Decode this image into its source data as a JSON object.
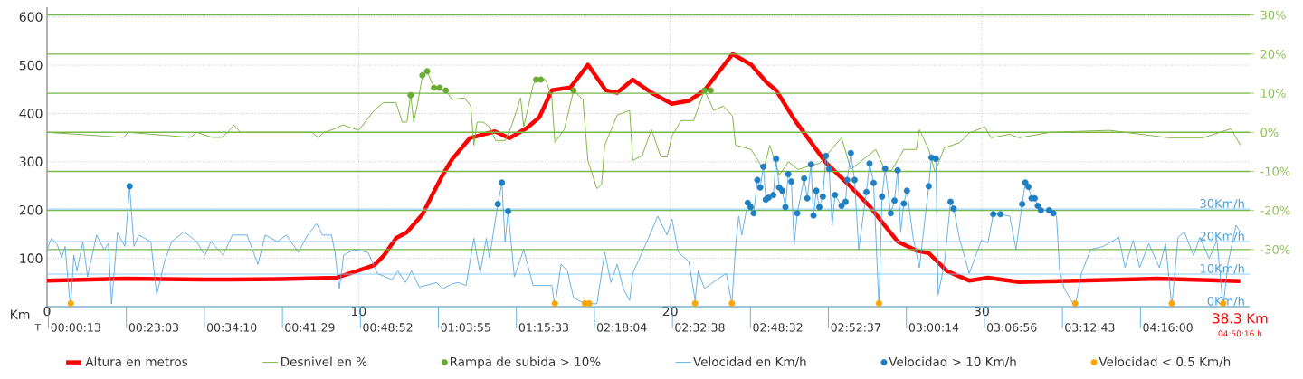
{
  "chart_data": {
    "type": "line",
    "xlabel": "Km",
    "xlim": [
      0,
      38.6
    ],
    "xticks": [
      0,
      10,
      20,
      30
    ],
    "ylim": [
      0,
      620
    ],
    "yticks": [
      100,
      200,
      300,
      400,
      500,
      600
    ],
    "y2lim": [
      -44.6,
      32
    ],
    "y2ticks": [
      {
        "value": 30,
        "label": "30%"
      },
      {
        "value": 20,
        "label": "20%"
      },
      {
        "value": 10,
        "label": "10%"
      },
      {
        "value": 0,
        "label": "0%"
      },
      {
        "value": -10,
        "label": "-10%"
      },
      {
        "value": -20,
        "label": "-20%"
      },
      {
        "value": -30,
        "label": "-30%"
      }
    ],
    "y3lim": [
      0,
      92
    ],
    "y3ticks": [
      {
        "value": 0,
        "label": "0Km/h"
      },
      {
        "value": 10,
        "label": "10Km/h"
      },
      {
        "value": 20,
        "label": "20Km/h"
      },
      {
        "value": 30,
        "label": "30Km/h"
      }
    ],
    "grid": true,
    "legend": "bottom",
    "annotations": [
      "T",
      "38.3 Km",
      "04:50:16 h",
      "00:00:13",
      "00:23:03",
      "00:34:10",
      "00:41:29",
      "00:48:52",
      "01:03:55",
      "01:15:33",
      "02:18:04",
      "02:32:38",
      "02:48:32",
      "02:52:37",
      "03:00:14",
      "03:06:56",
      "03:12:43",
      "04:16:00"
    ],
    "series": [
      {
        "name": "Altura en metros",
        "color": "#ff0000",
        "x": [
          0,
          2.5,
          5,
          7.5,
          9.3,
          9.9,
          10.5,
          10.8,
          11.2,
          11.55,
          12.05,
          12.4,
          12.7,
          13.0,
          13.57,
          14.37,
          14.84,
          15.4,
          15.8,
          16.2,
          16.8,
          17.36,
          17.93,
          18.3,
          18.8,
          19.4,
          20.05,
          20.6,
          21.1,
          22.0,
          22.6,
          23.1,
          23.4,
          24.0,
          25.0,
          25.8,
          26.4,
          26.9,
          27.3,
          27.9,
          28.3,
          28.9,
          29.6,
          30.2,
          31.2,
          33.1,
          35.6,
          38.3
        ],
        "values": [
          54,
          58,
          56,
          57,
          60,
          73,
          86,
          105,
          142,
          154,
          191,
          236,
          273,
          305,
          349,
          363,
          349,
          370,
          392,
          448,
          454,
          501,
          448,
          443,
          470,
          443,
          420,
          426,
          448,
          523,
          501,
          464,
          448,
          386,
          298,
          248,
          208,
          167,
          135,
          116,
          111,
          73,
          54,
          60,
          51,
          54,
          58,
          53
        ]
      },
      {
        "name": "Desnivel en %",
        "axis": "y2",
        "color": "#80b844",
        "x": [
          0,
          2.46,
          2.6,
          4.6,
          4.8,
          5.3,
          5.6,
          5.8,
          6.0,
          6.2,
          8.5,
          8.7,
          8.9,
          9.2,
          9.5,
          10.0,
          10.5,
          10.8,
          11.2,
          11.4,
          11.55,
          11.67,
          11.77,
          11.9,
          12.05,
          12.2,
          12.42,
          12.8,
          13.0,
          13.4,
          13.6,
          13.7,
          13.8,
          14.0,
          14.2,
          14.4,
          14.7,
          14.9,
          15.2,
          15.3,
          15.6,
          15.7,
          16.0,
          16.2,
          16.3,
          16.6,
          16.9,
          17.2,
          17.36,
          17.65,
          17.8,
          17.9,
          18.3,
          18.7,
          18.8,
          19.1,
          19.4,
          19.7,
          19.9,
          20.06,
          20.35,
          20.75,
          21.1,
          21.4,
          21.7,
          22.0,
          22.1,
          22.6,
          23.0,
          23.2,
          23.5,
          23.8,
          24.1,
          24.8,
          25.5,
          25.8,
          26.6,
          26.9,
          27.1,
          27.5,
          27.9,
          28.0,
          28.3,
          28.5,
          28.8,
          29.3,
          29.6,
          30.1,
          30.3,
          30.9,
          31.2,
          32.2,
          34.1,
          36.0,
          37.1,
          38.0,
          38.3
        ],
        "values": [
          0,
          -1.3,
          0,
          -1.3,
          0,
          -1.3,
          -1.3,
          0,
          1.9,
          0,
          0,
          -1.3,
          0,
          0.8,
          1.9,
          0.5,
          5.6,
          7.6,
          7.6,
          2.6,
          2.6,
          9.5,
          2.6,
          7.6,
          14.6,
          15.6,
          11.4,
          10.7,
          8.4,
          8.8,
          6.7,
          -3.3,
          2.6,
          2.6,
          1.4,
          -2.1,
          -2.1,
          1.4,
          8.8,
          1.4,
          12,
          13.5,
          13.5,
          9.1,
          -2.6,
          0.7,
          10.7,
          8.4,
          -7.2,
          -14.4,
          -13.3,
          -3.3,
          4.4,
          5.6,
          -7.2,
          -6.0,
          0.7,
          -6.3,
          -6.3,
          -0.9,
          3.0,
          3.0,
          10.7,
          5.6,
          6.7,
          4.2,
          -3.3,
          -4.4,
          -9.5,
          -3.3,
          -11,
          -7.5,
          -9.5,
          -7.9,
          -1.4,
          -9.5,
          -4.4,
          -9.8,
          -9.8,
          -4.4,
          -4.4,
          0.7,
          -4.4,
          -10.2,
          -4.0,
          -2.6,
          -0.2,
          1.4,
          -1.4,
          -0.5,
          -1.4,
          0,
          0.5,
          -1.4,
          -1.4,
          0.9,
          -3.3
        ]
      },
      {
        "name": "Rampa de subida > 10%",
        "type": "scatter",
        "axis": "y2",
        "marker": "circle",
        "color": "#6aab34",
        "x": [
          11.67,
          12.05,
          12.2,
          12.42,
          12.6,
          12.8,
          15.7,
          15.85,
          16.9,
          21.1,
          21.3
        ],
        "values": [
          9.5,
          14.6,
          15.6,
          11.4,
          11.4,
          10.7,
          13.5,
          13.5,
          10.7,
          10.7,
          10.7
        ]
      },
      {
        "name": "Velocidad en Km/h",
        "axis": "y3",
        "color": "#5aa9e0",
        "x": [
          0,
          0.14,
          0.33,
          0.47,
          0.58,
          0.72,
          0.76,
          0.86,
          0.96,
          1.15,
          1.3,
          1.59,
          1.83,
          1.97,
          2.07,
          2.26,
          2.5,
          2.65,
          2.79,
          2.94,
          3.33,
          3.52,
          3.77,
          4.0,
          4.4,
          4.8,
          5.07,
          5.26,
          5.65,
          5.95,
          6.42,
          6.77,
          7.0,
          7.4,
          7.68,
          8.07,
          8.36,
          8.65,
          8.84,
          9.13,
          9.24,
          9.38,
          9.52,
          9.85,
          10.3,
          10.6,
          11.07,
          11.26,
          11.5,
          11.7,
          11.95,
          12.5,
          12.7,
          13.0,
          13.2,
          13.45,
          13.7,
          13.9,
          14.1,
          14.2,
          14.47,
          14.6,
          14.7,
          14.8,
          15.0,
          15.3,
          15.6,
          16.2,
          16.3,
          16.5,
          16.7,
          16.9,
          17.26,
          17.4,
          17.65,
          17.9,
          18.1,
          18.3,
          18.5,
          18.7,
          18.8,
          19.1,
          19.3,
          19.6,
          19.9,
          20.06,
          20.26,
          20.6,
          20.8,
          20.9,
          21.1,
          21.5,
          21.8,
          21.98,
          22.1,
          22.2,
          22.3,
          22.49,
          22.58,
          22.68,
          22.8,
          22.89,
          22.99,
          23.07,
          23.16,
          23.31,
          23.4,
          23.5,
          23.6,
          23.7,
          23.79,
          23.89,
          23.98,
          24.08,
          24.3,
          24.4,
          24.52,
          24.6,
          24.69,
          24.79,
          24.9,
          25.0,
          25.1,
          25.2,
          25.29,
          25.5,
          25.63,
          25.68,
          25.8,
          25.92,
          26.05,
          26.3,
          26.4,
          26.53,
          26.7,
          26.8,
          26.9,
          27.08,
          27.2,
          27.3,
          27.4,
          27.5,
          27.6,
          27.8,
          28.0,
          28.3,
          28.39,
          28.53,
          28.6,
          28.8,
          29.0,
          29.1,
          29.3,
          29.6,
          29.99,
          30.2,
          30.37,
          30.6,
          30.9,
          31.1,
          31.3,
          31.4,
          31.5,
          31.6,
          31.7,
          31.8,
          31.9,
          32.16,
          32.3,
          32.4,
          32.5,
          32.65,
          33.0,
          33.2,
          33.5,
          33.9,
          34.4,
          34.6,
          34.86,
          35.07,
          35.36,
          35.7,
          35.9,
          36.1,
          36.3,
          36.5,
          36.8,
          37.0,
          37.3,
          37.55,
          37.75,
          37.9,
          38.16,
          38.3
        ],
        "values": [
          17.5,
          21,
          19,
          15,
          18.5,
          2.8,
          1,
          15.8,
          11,
          20,
          9.2,
          22,
          17.5,
          19.4,
          0.8,
          22.7,
          18.5,
          37,
          18.5,
          22,
          20,
          3.6,
          13.9,
          20,
          23,
          20,
          15.8,
          20,
          15.8,
          22,
          22,
          13,
          22,
          20,
          22,
          16.7,
          22,
          25.5,
          22,
          22,
          16.7,
          5.5,
          15.8,
          17.5,
          16.7,
          10.2,
          8.3,
          11,
          7.4,
          11,
          6,
          7.4,
          5.5,
          7,
          7.4,
          6.5,
          21,
          10.2,
          21,
          15,
          31.5,
          38.1,
          20,
          29.3,
          9.2,
          17.5,
          6.5,
          6.5,
          0,
          13,
          11,
          2.8,
          0.9,
          0.9,
          0.9,
          16.7,
          7.4,
          13,
          5.5,
          1.9,
          10.2,
          16.7,
          21,
          27.8,
          22,
          26.9,
          16.7,
          13.9,
          1.9,
          11,
          5.5,
          8.3,
          10.2,
          0.9,
          18.5,
          27.8,
          22,
          31.9,
          30.6,
          28.7,
          38.9,
          36.6,
          43,
          32.9,
          33.5,
          34.3,
          45.4,
          36.6,
          35.6,
          30.6,
          40.7,
          38.4,
          19,
          28.7,
          39.4,
          33.3,
          43.7,
          28,
          35.6,
          30.6,
          33.8,
          46.3,
          42.3,
          25,
          34.3,
          31,
          32.2,
          38.9,
          47.2,
          38.9,
          17.5,
          35.2,
          44,
          38,
          0,
          33.8,
          42.4,
          28.7,
          32.6,
          41.9,
          23,
          31.7,
          35.6,
          21,
          12,
          37,
          45.8,
          45.4,
          3.7,
          13,
          32.2,
          30.1,
          20.4,
          10.2,
          20.4,
          19.6,
          28.4,
          28.4,
          27.8,
          17.6,
          31.5,
          38.1,
          36.8,
          33.3,
          33.3,
          31,
          29.6,
          29.6,
          28.7,
          27.8,
          11.1,
          5.5,
          0,
          10.2,
          17.6,
          18.5,
          21.3,
          12,
          20.4,
          12,
          19.4,
          12,
          19.4,
          0,
          21.3,
          23,
          15.7,
          21.3,
          14.8,
          20.4,
          0,
          13,
          25,
          23
        ]
      },
      {
        "name": "Velocidad > 10 Km/h",
        "type": "scatter",
        "axis": "y3",
        "marker": "circle",
        "color": "#1f7fc0",
        "x": [
          2.65,
          14.47,
          14.6,
          14.8,
          22.49,
          22.58,
          22.68,
          22.8,
          22.89,
          22.99,
          23.07,
          23.16,
          23.31,
          23.4,
          23.5,
          23.6,
          23.7,
          23.79,
          23.89,
          24.08,
          24.3,
          24.4,
          24.52,
          24.6,
          24.69,
          24.79,
          24.9,
          25.0,
          25.1,
          25.29,
          25.5,
          25.63,
          25.68,
          25.8,
          25.92,
          26.3,
          26.4,
          26.53,
          26.8,
          26.9,
          27.08,
          27.2,
          27.3,
          27.5,
          27.6,
          28.3,
          28.39,
          28.53,
          29.0,
          29.1,
          30.37,
          30.6,
          31.3,
          31.4,
          31.5,
          31.6,
          31.7,
          31.8,
          31.9,
          32.16,
          32.3
        ],
        "values": [
          37,
          31.5,
          38.1,
          29.3,
          31.9,
          30.6,
          28.7,
          38.9,
          36.6,
          43,
          32.9,
          33.5,
          34.3,
          45.4,
          36.6,
          35.6,
          30.6,
          40.7,
          38.4,
          28.7,
          39.4,
          33.3,
          43.7,
          28,
          35.6,
          30.6,
          33.8,
          46.3,
          42.3,
          34.3,
          31,
          32.2,
          38.9,
          47.2,
          38.9,
          35.2,
          44,
          38,
          33.8,
          42.4,
          28.7,
          32.6,
          41.9,
          31.7,
          35.6,
          37,
          45.8,
          45.4,
          32.2,
          30.1,
          28.4,
          28.4,
          31.5,
          38.1,
          36.8,
          33.3,
          33.3,
          31,
          29.6,
          29.6,
          28.7
        ]
      },
      {
        "name": "Velocidad < 0.5 Km/h",
        "type": "scatter",
        "axis": "y3",
        "marker": "circle",
        "color": "#ffa500",
        "x": [
          0.76,
          16.3,
          17.26,
          17.4,
          20.8,
          21.98,
          26.7,
          33.0,
          36.1,
          37.75
        ],
        "values": [
          1,
          1,
          1,
          1,
          1,
          1,
          1,
          1,
          1,
          1
        ]
      }
    ]
  }
}
